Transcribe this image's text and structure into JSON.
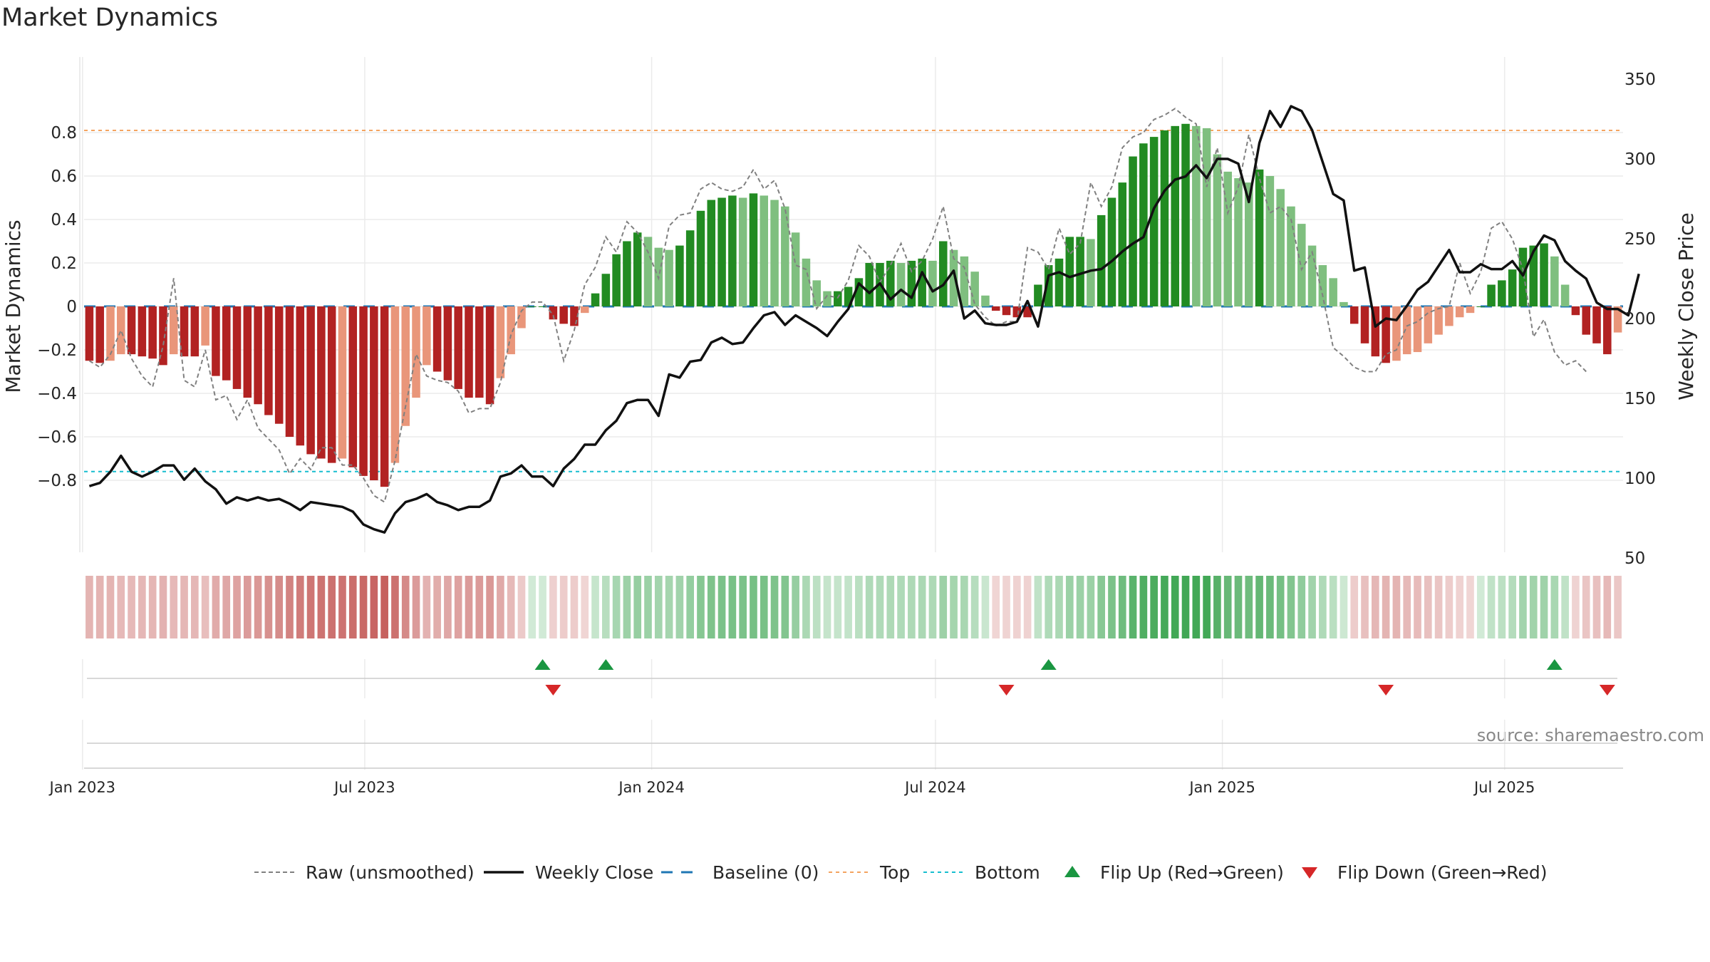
{
  "chart_data": {
    "type": "bar",
    "title": "Market Dynamics",
    "ylabel": "Market Dynamics",
    "y2label": "Weekly Close Price",
    "source": "source: sharemaestro.com",
    "ylim": [
      -0.9,
      0.9
    ],
    "y2lim": [
      50,
      350
    ],
    "yticks": [
      "0.8",
      "0.6",
      "0.4",
      "0.2",
      "0",
      "−0.2",
      "−0.4",
      "−0.6",
      "−0.8"
    ],
    "y2ticks": [
      "350",
      "300",
      "250",
      "200",
      "150",
      "100",
      "50"
    ],
    "xticks": [
      "Jan 2023",
      "Jul 2023",
      "Jan 2024",
      "Jul 2024",
      "Jan 2025",
      "Jul 2025"
    ],
    "top_level": 0.81,
    "bottom_level": -0.76,
    "colors": {
      "strong_red": "#b22222",
      "light_red": "#e9967a",
      "strong_green": "#228b22",
      "light_green": "#7fbf7f",
      "raw": "#808080",
      "close": "#111111",
      "baseline": "#1f77b4",
      "top": "#f4a460",
      "bottom": "#17becf",
      "flip_up": "#1a9641",
      "flip_down": "#d62728"
    },
    "legend": [
      "Raw (unsmoothed)",
      "Weekly Close",
      "Baseline (0)",
      "Top",
      "Bottom",
      "Flip Up (Red→Green)",
      "Flip Down (Green→Red)"
    ],
    "series": [
      {
        "name": "Market Dynamics",
        "values": [
          -0.25,
          -0.26,
          -0.25,
          -0.22,
          -0.22,
          -0.23,
          -0.24,
          -0.27,
          -0.22,
          -0.23,
          -0.23,
          -0.18,
          -0.32,
          -0.34,
          -0.38,
          -0.42,
          -0.45,
          -0.5,
          -0.54,
          -0.6,
          -0.64,
          -0.68,
          -0.7,
          -0.72,
          -0.7,
          -0.74,
          -0.78,
          -0.8,
          -0.83,
          -0.72,
          -0.55,
          -0.42,
          -0.27,
          -0.3,
          -0.34,
          -0.38,
          -0.42,
          -0.42,
          -0.45,
          -0.33,
          -0.22,
          -0.1,
          0.0,
          0.0,
          -0.06,
          -0.08,
          -0.09,
          -0.03,
          0.06,
          0.15,
          0.24,
          0.3,
          0.34,
          0.32,
          0.27,
          0.26,
          0.28,
          0.35,
          0.44,
          0.49,
          0.5,
          0.51,
          0.5,
          0.52,
          0.51,
          0.49,
          0.46,
          0.34,
          0.22,
          0.12,
          0.07,
          0.07,
          0.09,
          0.13,
          0.2,
          0.2,
          0.21,
          0.2,
          0.21,
          0.22,
          0.21,
          0.3,
          0.26,
          0.23,
          0.16,
          0.05,
          -0.02,
          -0.04,
          -0.05,
          -0.05,
          0.1,
          0.19,
          0.22,
          0.32,
          0.32,
          0.31,
          0.42,
          0.5,
          0.57,
          0.69,
          0.75,
          0.78,
          0.81,
          0.83,
          0.84,
          0.83,
          0.82,
          0.7,
          0.62,
          0.59,
          0.57,
          0.63,
          0.6,
          0.54,
          0.46,
          0.38,
          0.28,
          0.19,
          0.13,
          0.02,
          -0.08,
          -0.17,
          -0.23,
          -0.26,
          -0.25,
          -0.22,
          -0.21,
          -0.17,
          -0.13,
          -0.09,
          -0.05,
          -0.03,
          0.0,
          0.1,
          0.12,
          0.17,
          0.27,
          0.28,
          0.29,
          0.23,
          0.1,
          -0.04,
          -0.13,
          -0.17,
          -0.22,
          -0.12
        ]
      },
      {
        "name": "Raw (unsmoothed)",
        "values": [
          -0.25,
          -0.28,
          -0.22,
          -0.11,
          -0.24,
          -0.32,
          -0.37,
          -0.18,
          0.13,
          -0.34,
          -0.37,
          -0.2,
          -0.43,
          -0.41,
          -0.52,
          -0.43,
          -0.56,
          -0.61,
          -0.66,
          -0.77,
          -0.7,
          -0.75,
          -0.65,
          -0.65,
          -0.73,
          -0.73,
          -0.79,
          -0.87,
          -0.9,
          -0.71,
          -0.46,
          -0.22,
          -0.32,
          -0.34,
          -0.35,
          -0.39,
          -0.49,
          -0.47,
          -0.47,
          -0.35,
          -0.13,
          -0.02,
          0.02,
          0.02,
          -0.04,
          -0.25,
          -0.11,
          0.1,
          0.18,
          0.32,
          0.25,
          0.39,
          0.34,
          0.25,
          0.13,
          0.37,
          0.42,
          0.43,
          0.54,
          0.57,
          0.54,
          0.53,
          0.55,
          0.63,
          0.54,
          0.58,
          0.45,
          0.19,
          0.17,
          -0.01,
          0.05,
          0.04,
          0.12,
          0.28,
          0.23,
          0.11,
          0.19,
          0.29,
          0.16,
          0.21,
          0.31,
          0.46,
          0.22,
          0.18,
          0.01,
          -0.05,
          -0.09,
          -0.07,
          -0.07,
          0.27,
          0.25,
          0.17,
          0.36,
          0.24,
          0.29,
          0.57,
          0.46,
          0.55,
          0.73,
          0.78,
          0.8,
          0.86,
          0.88,
          0.91,
          0.87,
          0.84,
          0.55,
          0.73,
          0.43,
          0.55,
          0.79,
          0.59,
          0.43,
          0.46,
          0.4,
          0.17,
          0.25,
          0.05,
          -0.19,
          -0.23,
          -0.28,
          -0.3,
          -0.3,
          -0.22,
          -0.2,
          -0.09,
          -0.07,
          -0.03,
          -0.01,
          0.0,
          0.2,
          0.06,
          0.16,
          0.36,
          0.39,
          0.31,
          0.17,
          -0.14,
          -0.06,
          -0.21,
          -0.27,
          -0.25,
          -0.3
        ]
      },
      {
        "name": "Weekly Close",
        "values": [
          95,
          97,
          104,
          114,
          104,
          101,
          104,
          108,
          108,
          99,
          106,
          98,
          93,
          84,
          88,
          86,
          88,
          86,
          87,
          84,
          80,
          85,
          84,
          83,
          82,
          79,
          71,
          68,
          66,
          78,
          85,
          87,
          90,
          85,
          83,
          80,
          82,
          82,
          86,
          101,
          103,
          108,
          101,
          101,
          95,
          106,
          112,
          121,
          121,
          130,
          136,
          147,
          149,
          149,
          139,
          165,
          163,
          173,
          174,
          185,
          188,
          184,
          185,
          194,
          202,
          204,
          196,
          202,
          198,
          194,
          189,
          198,
          206,
          222,
          216,
          222,
          212,
          218,
          213,
          229,
          217,
          221,
          230,
          200,
          205,
          197,
          196,
          196,
          198,
          211,
          195,
          227,
          229,
          226,
          228,
          230,
          231,
          236,
          242,
          247,
          251,
          269,
          280,
          287,
          289,
          296,
          288,
          300,
          300,
          297,
          273,
          310,
          330,
          320,
          333,
          330,
          318,
          298,
          278,
          274,
          230,
          232,
          195,
          200,
          199,
          208,
          218,
          223,
          233,
          243,
          229,
          229,
          234,
          231,
          231,
          236,
          227,
          242,
          252,
          249,
          236,
          230,
          225,
          210,
          206,
          206,
          202,
          228
        ]
      }
    ],
    "flip_up_index": [
      43,
      49,
      91,
      139
    ],
    "flip_down_index": [
      44,
      87,
      123,
      144
    ],
    "date_axis": [
      "2023-01-02",
      "2025-09-15"
    ]
  }
}
